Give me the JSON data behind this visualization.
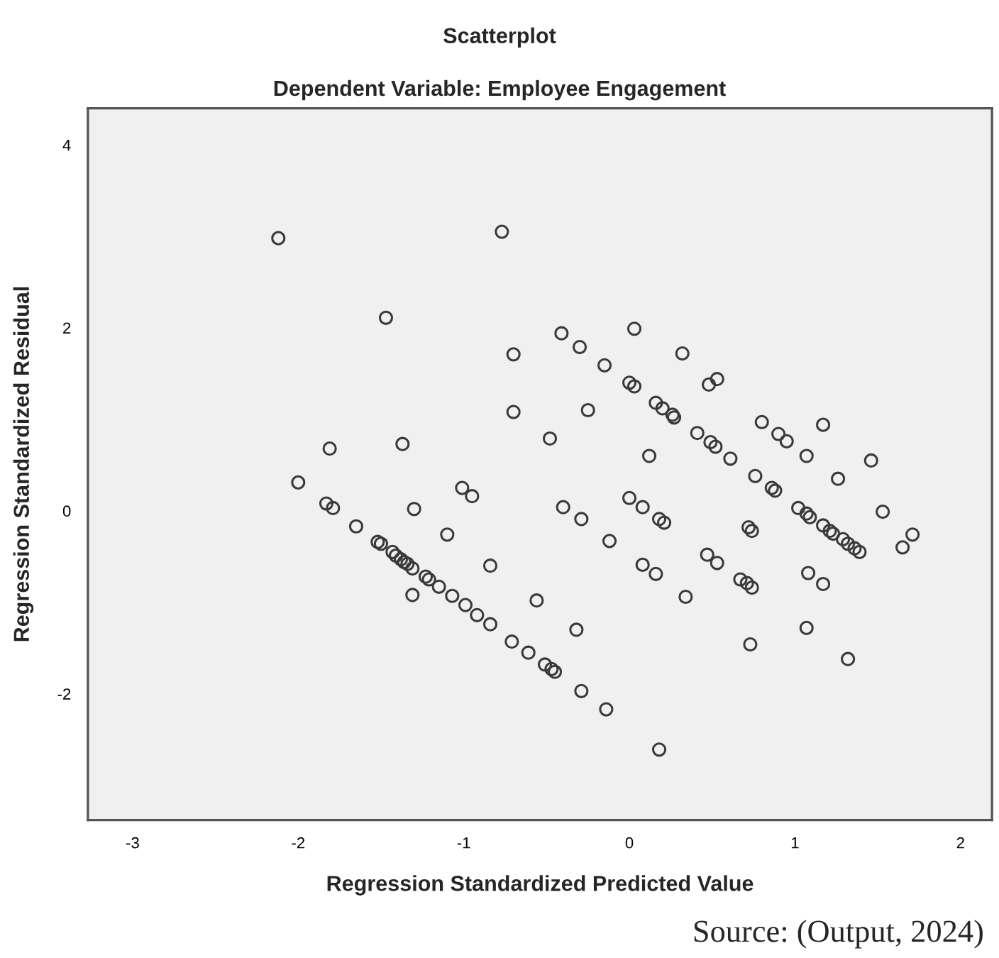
{
  "chart_data": {
    "type": "scatter",
    "title": "Scatterplot",
    "subtitle": "Dependent Variable: Employee Engagement",
    "xlabel": "Regression Standardized Predicted Value",
    "ylabel": "Regression Standardized Residual",
    "annotations": [
      "Source: (Output, 2024)"
    ],
    "marker": "circle",
    "grid": false,
    "xlim": [
      -3.27,
      2.19
    ],
    "ylim": [
      -3.38,
      4.4
    ],
    "xticks": [
      -3,
      -2,
      -1,
      0,
      1,
      2
    ],
    "yticks": [
      -2,
      0,
      2,
      4
    ],
    "series": [
      {
        "color": "#3a3a3a",
        "x": [
          -2.12,
          -0.77,
          -1.47,
          -0.7,
          -0.7,
          -1.81,
          -1.37,
          -2.0,
          -1.83,
          -1.79,
          -1.65,
          -1.52,
          -1.5,
          -1.43,
          -1.41,
          -1.38,
          -1.36,
          -1.34,
          -1.31,
          -1.23,
          -1.21,
          -1.15,
          -1.07,
          -0.99,
          -0.92,
          -0.84,
          -0.71,
          -0.61,
          -0.51,
          -0.47,
          -1.3,
          -1.01,
          -0.95,
          -1.1,
          -0.84,
          -1.31,
          -0.56,
          -0.48,
          0.12,
          0.41,
          0.49,
          0.52,
          0.61,
          0.9,
          0.95,
          1.07,
          1.46,
          0.76,
          0.86,
          0.88,
          1.26,
          -0.4,
          -0.29,
          -0.12,
          0.0,
          0.08,
          0.18,
          0.21,
          0.72,
          0.74,
          1.02,
          1.07,
          1.09,
          1.17,
          1.21,
          1.23,
          1.29,
          1.32,
          1.36,
          1.39,
          1.53,
          1.71,
          1.65,
          0.08,
          0.16,
          0.47,
          0.53,
          0.34,
          0.67,
          0.71,
          0.74,
          1.08,
          1.17,
          -0.32,
          1.07,
          0.73,
          1.32,
          -0.45,
          -0.29,
          -0.14,
          0.18,
          -0.41,
          -0.3,
          -0.15,
          0.03,
          0.0,
          0.03,
          0.32,
          0.16,
          0.2,
          0.26,
          0.27,
          -0.25,
          0.48,
          0.53,
          0.8,
          1.17
        ],
        "values": [
          2.98,
          3.05,
          2.11,
          1.71,
          1.08,
          0.68,
          0.73,
          0.31,
          0.08,
          0.03,
          -0.17,
          -0.34,
          -0.36,
          -0.45,
          -0.49,
          -0.53,
          -0.56,
          -0.58,
          -0.63,
          -0.72,
          -0.75,
          -0.83,
          -0.93,
          -1.03,
          -1.14,
          -1.24,
          -1.43,
          -1.55,
          -1.68,
          -1.73,
          0.02,
          0.25,
          0.16,
          -0.26,
          -0.6,
          -0.92,
          -0.98,
          0.79,
          0.6,
          0.85,
          0.75,
          0.7,
          0.57,
          0.84,
          0.76,
          0.6,
          0.55,
          0.38,
          0.25,
          0.22,
          0.35,
          0.04,
          -0.09,
          -0.33,
          0.14,
          0.04,
          -0.09,
          -0.13,
          -0.18,
          -0.22,
          0.03,
          -0.03,
          -0.07,
          -0.16,
          -0.22,
          -0.25,
          -0.31,
          -0.36,
          -0.41,
          -0.45,
          -0.01,
          -0.26,
          -0.4,
          -0.59,
          -0.69,
          -0.48,
          -0.57,
          -0.94,
          -0.75,
          -0.79,
          -0.84,
          -0.68,
          -0.8,
          -1.3,
          -1.28,
          -1.46,
          -1.62,
          -1.76,
          -1.97,
          -2.17,
          -2.61,
          1.94,
          1.79,
          1.59,
          1.99,
          1.4,
          1.36,
          1.72,
          1.18,
          1.12,
          1.05,
          1.02,
          1.1,
          1.38,
          1.44,
          0.97,
          0.94
        ]
      }
    ]
  }
}
